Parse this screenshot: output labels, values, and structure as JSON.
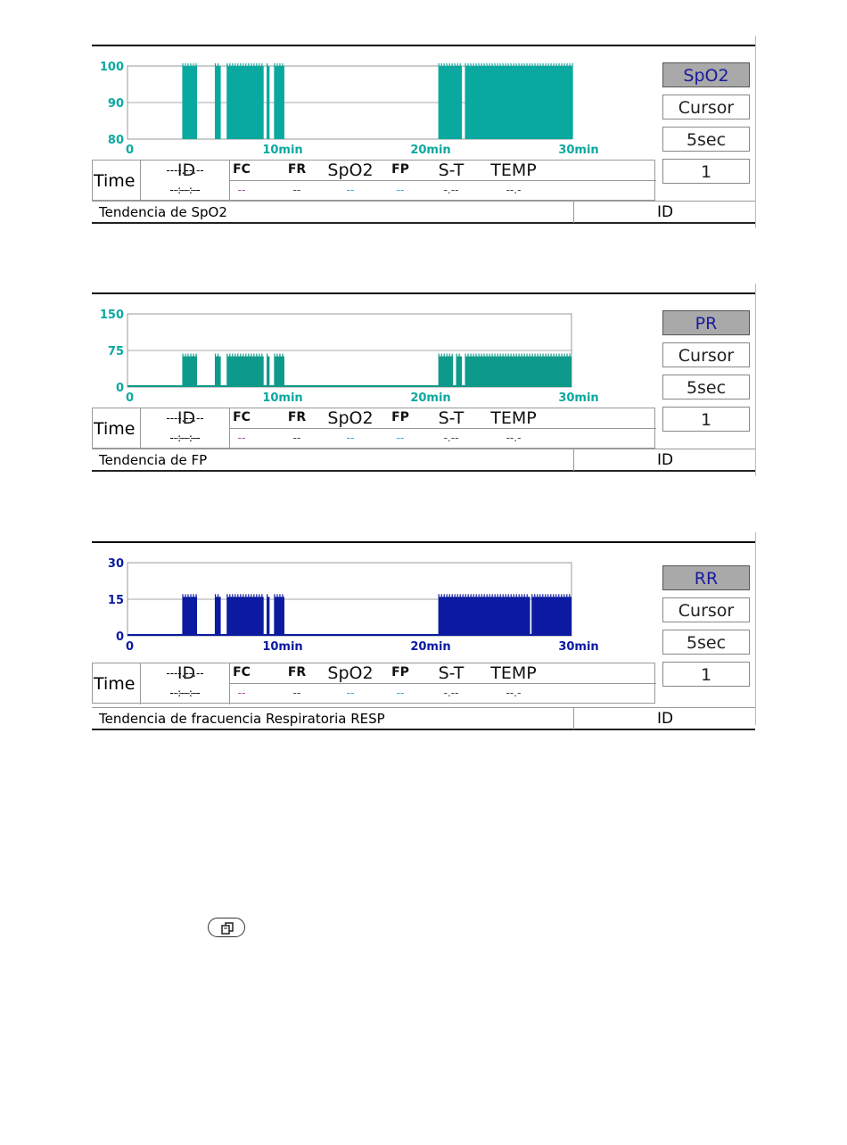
{
  "panels": [
    {
      "caption": "Tendencia de SpO2",
      "id_label": "ID",
      "buttons": {
        "param": "SpO2",
        "cursor": "Cursor",
        "interval": "5sec",
        "page": "1"
      },
      "y_ticks": [
        "100",
        "90",
        "80"
      ],
      "x_ticks": [
        "0",
        "10min",
        "20min",
        "30min"
      ],
      "info": {
        "time_label": "Time",
        "date_value": "----.--.--",
        "time_value": "--:--:--",
        "headers": [
          "ID",
          "FC",
          "FR",
          "SpO2",
          "FP",
          "S-T",
          "TEMP"
        ],
        "values": [
          "------",
          "--",
          "--",
          "--",
          "--",
          "-.--",
          "--.-"
        ]
      },
      "colors": {
        "trace": "#0aa9a0",
        "axis_ticks": "#0aa9a0"
      }
    },
    {
      "caption": "Tendencia de FP",
      "id_label": "ID",
      "buttons": {
        "param": "PR",
        "cursor": "Cursor",
        "interval": "5sec",
        "page": "1"
      },
      "y_ticks": [
        "150",
        "75",
        "0"
      ],
      "x_ticks": [
        "0",
        "10min",
        "20min",
        "30min"
      ],
      "info": {
        "time_label": "Time",
        "date_value": "----.--.--",
        "time_value": "--:--:--",
        "headers": [
          "ID",
          "FC",
          "FR",
          "SpO2",
          "FP",
          "S-T",
          "TEMP"
        ],
        "values": [
          "------",
          "--",
          "--",
          "--",
          "--",
          "-.--",
          "--.-"
        ]
      },
      "colors": {
        "trace": "#0e9a8a",
        "axis_ticks": "#0aa9a0"
      }
    },
    {
      "caption": "Tendencia de fracuencia Respiratoria RESP",
      "id_label": "ID",
      "buttons": {
        "param": "RR",
        "cursor": "Cursor",
        "interval": "5sec",
        "page": "1"
      },
      "y_ticks": [
        "30",
        "15",
        "0"
      ],
      "x_ticks": [
        "0",
        "10min",
        "20min",
        "30min"
      ],
      "info": {
        "time_label": "Time",
        "date_value": "----.--.--",
        "time_value": "--:--:--",
        "headers": [
          "ID",
          "FC",
          "FR",
          "SpO2",
          "FP",
          "S-T",
          "TEMP"
        ],
        "values": [
          "------",
          "--",
          "--",
          "--",
          "--",
          "-.--",
          "--.-"
        ]
      },
      "colors": {
        "trace": "#0b1aa0",
        "axis_ticks": "#0b1aa0"
      }
    }
  ],
  "chart_data": [
    {
      "type": "area",
      "ylabel": "",
      "xlabel": "",
      "ylim": [
        80,
        100
      ],
      "xlim": [
        0,
        30
      ],
      "x_unit": "min",
      "segments": [
        {
          "x": [
            3.7,
            4.7
          ],
          "y": 100
        },
        {
          "x": [
            5.9,
            6.3
          ],
          "y": 100
        },
        {
          "x": [
            6.7,
            9.2
          ],
          "y": 100
        },
        {
          "x": [
            9.4,
            9.6
          ],
          "y": 100
        },
        {
          "x": [
            9.9,
            10.6
          ],
          "y": 100
        },
        {
          "x": [
            21.0,
            22.6
          ],
          "y": 100
        },
        {
          "x": [
            22.8,
            30.1
          ],
          "y": 100
        }
      ]
    },
    {
      "type": "area",
      "ylabel": "",
      "xlabel": "",
      "ylim": [
        0,
        150
      ],
      "xlim": [
        0,
        30
      ],
      "x_unit": "min",
      "baseline": 0,
      "segments": [
        {
          "x": [
            3.7,
            4.7
          ],
          "y": 63
        },
        {
          "x": [
            5.9,
            6.3
          ],
          "y": 63
        },
        {
          "x": [
            6.7,
            9.2
          ],
          "y": 63
        },
        {
          "x": [
            9.4,
            9.6
          ],
          "y": 63
        },
        {
          "x": [
            9.9,
            10.6
          ],
          "y": 63
        },
        {
          "x": [
            21.0,
            22.0
          ],
          "y": 63
        },
        {
          "x": [
            22.2,
            22.6
          ],
          "y": 63
        },
        {
          "x": [
            22.8,
            30.0
          ],
          "y": 63
        }
      ]
    },
    {
      "type": "area",
      "ylabel": "",
      "xlabel": "",
      "ylim": [
        0,
        30
      ],
      "xlim": [
        0,
        30
      ],
      "x_unit": "min",
      "baseline": 0,
      "segments": [
        {
          "x": [
            3.7,
            4.7
          ],
          "y": 16
        },
        {
          "x": [
            5.9,
            6.3
          ],
          "y": 16
        },
        {
          "x": [
            6.7,
            9.2
          ],
          "y": 16
        },
        {
          "x": [
            9.4,
            9.6
          ],
          "y": 16
        },
        {
          "x": [
            9.9,
            10.6
          ],
          "y": 16
        },
        {
          "x": [
            21.0,
            27.2
          ],
          "y": 16
        },
        {
          "x": [
            27.3,
            30.0
          ],
          "y": 16
        }
      ]
    }
  ]
}
